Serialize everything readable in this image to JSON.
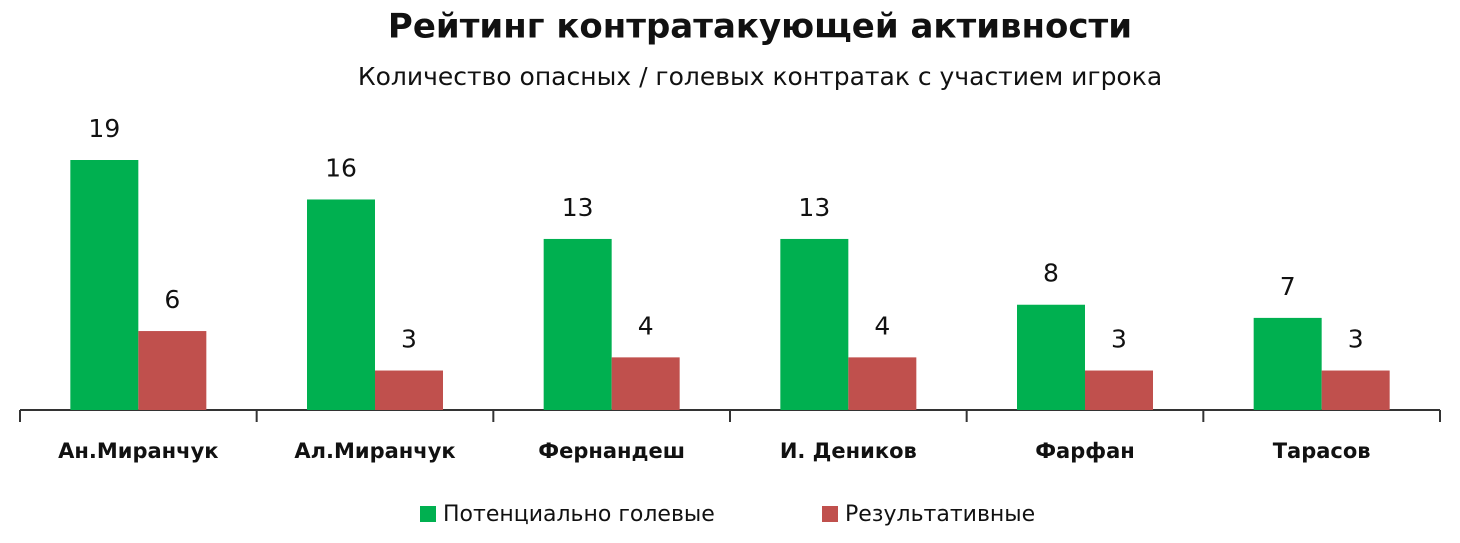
{
  "chart_data": {
    "type": "bar",
    "title": "Рейтинг контратакующей активности",
    "subtitle": "Количество опасных / голевых контратак с участием игрока",
    "categories": [
      "Ан.Миранчук",
      "Ал.Миранчук",
      "Фернандеш",
      "И. Деников",
      "Фарфан",
      "Тарасов"
    ],
    "series": [
      {
        "name": "Потенциально голевые",
        "color": "#00b050",
        "values": [
          19,
          16,
          13,
          13,
          8,
          7
        ]
      },
      {
        "name": "Результативные",
        "color": "#c0504d",
        "values": [
          6,
          3,
          4,
          4,
          3,
          3
        ]
      }
    ],
    "legend": "bottom"
  }
}
